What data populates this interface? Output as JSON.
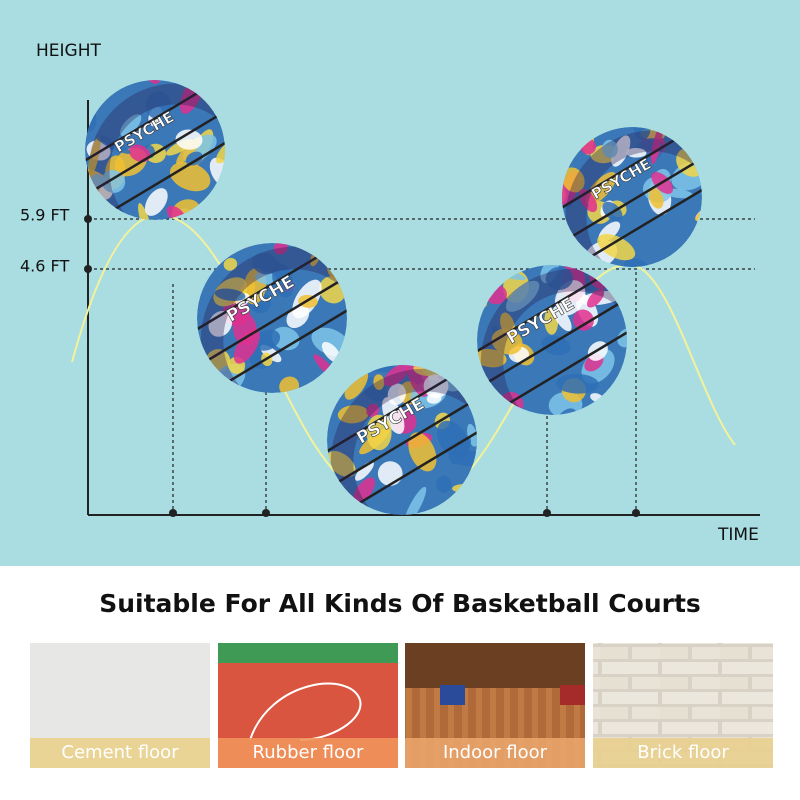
{
  "axis": {
    "y_label": "HEIGHT",
    "x_label": "TIME",
    "levels": [
      "5.9 FT",
      "4.6 FT"
    ]
  },
  "ball_text": "PSYCHE",
  "heading": "Suitable For All Kinds Of Basketball Courts",
  "floors": [
    "Cement floor",
    "Rubber floor",
    "Indoor floor",
    "Brick floor"
  ]
}
